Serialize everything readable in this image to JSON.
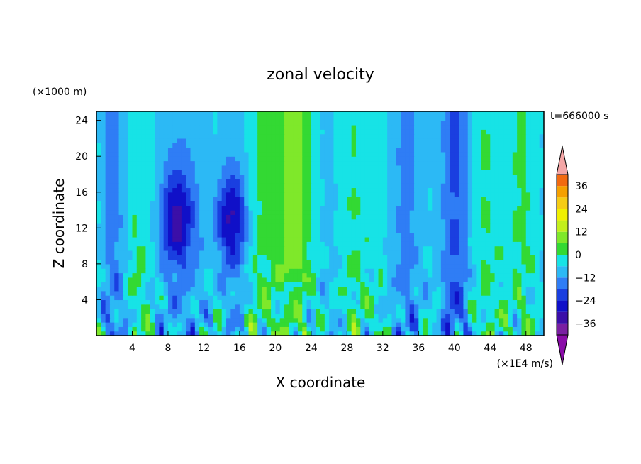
{
  "chart_data": {
    "type": "heatmap",
    "title": "zonal velocity",
    "xlabel": "X coordinate",
    "ylabel": "Z coordinate",
    "y_unit_label": "(×1000 m)",
    "colorbar_unit_label": "(×1E4 m/s)",
    "time_label": "t=666000 s",
    "xlim": [
      0,
      50
    ],
    "ylim": [
      0,
      25
    ],
    "x_ticks": [
      4,
      8,
      12,
      16,
      20,
      24,
      28,
      32,
      36,
      40,
      44,
      48
    ],
    "y_ticks": [
      4,
      8,
      12,
      16,
      20,
      24
    ],
    "colorbar_ticks": [
      36,
      24,
      12,
      0,
      -12,
      -24,
      -36
    ],
    "colorbar_levels": [
      -42,
      -36,
      -30,
      -24,
      -18,
      -12,
      -6,
      0,
      6,
      12,
      18,
      24,
      30,
      36,
      42
    ],
    "colorbar_colors": [
      "#7a1fa2",
      "#3b0fa8",
      "#1010c8",
      "#1a3fe0",
      "#2f7df5",
      "#2cb9f5",
      "#17e3e6",
      "#33d933",
      "#7fe82a",
      "#c3ef1c",
      "#f0f000",
      "#f5cc14",
      "#f5a000",
      "#f26a10",
      "#e81c1c"
    ],
    "colorbar_under_color": "#8a0ca8",
    "colorbar_over_color": "#f4a6a6",
    "colorbar_tick_positions": [
      36,
      24,
      12,
      0,
      -12,
      -24,
      -36
    ],
    "x_features": [
      {
        "x": 2,
        "tag": "cyan"
      },
      {
        "x": 9,
        "tag": "blue"
      },
      {
        "x": 15,
        "tag": "blue"
      },
      {
        "x": 22,
        "tag": "yellow"
      },
      {
        "x": 34,
        "tag": "cyan"
      },
      {
        "x": 40,
        "tag": "cyan"
      }
    ]
  }
}
